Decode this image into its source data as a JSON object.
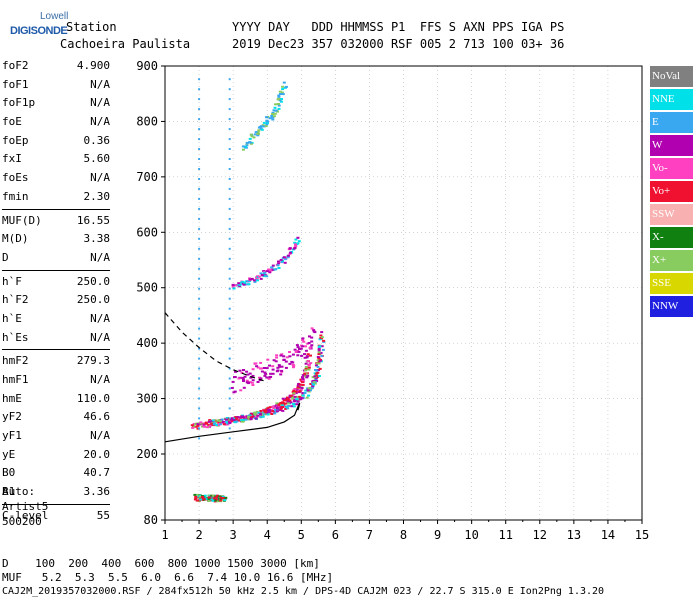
{
  "logo": {
    "line1": "Lowell",
    "line2": "DIGISONDE"
  },
  "header": {
    "station_label": "Station",
    "station_name": "Cachoeira Paulista",
    "columns": "YYYY DAY   DDD HHMMSS P1  FFS S AXN PPS IGA PS",
    "values": "2019 Dec23 357 032000 RSF 005 2 713 100 03+ 36"
  },
  "params": [
    {
      "group": [
        {
          "label": "foF2",
          "value": "4.900"
        },
        {
          "label": "foF1",
          "value": "N/A"
        },
        {
          "label": "foF1p",
          "value": "N/A"
        },
        {
          "label": "foE",
          "value": "N/A"
        },
        {
          "label": "foEp",
          "value": "0.36"
        },
        {
          "label": "fxI",
          "value": "5.60"
        },
        {
          "label": "foEs",
          "value": "N/A"
        },
        {
          "label": "fmin",
          "value": "2.30"
        }
      ]
    },
    {
      "group": [
        {
          "label": "MUF(D)",
          "value": "16.55"
        },
        {
          "label": "M(D)",
          "value": "3.38"
        },
        {
          "label": "D",
          "value": "N/A"
        }
      ]
    },
    {
      "group": [
        {
          "label": "h`F",
          "value": "250.0"
        },
        {
          "label": "h`F2",
          "value": "250.0"
        },
        {
          "label": "h`E",
          "value": "N/A"
        },
        {
          "label": "h`Es",
          "value": "N/A"
        }
      ]
    },
    {
      "group": [
        {
          "label": "hmF2",
          "value": "279.3"
        },
        {
          "label": "hmF1",
          "value": "N/A"
        },
        {
          "label": "hmE",
          "value": "110.0"
        },
        {
          "label": "yF2",
          "value": "46.6"
        },
        {
          "label": "yF1",
          "value": "N/A"
        },
        {
          "label": "yE",
          "value": "20.0"
        },
        {
          "label": "B0",
          "value": "40.7"
        },
        {
          "label": "B1",
          "value": "3.36"
        }
      ]
    },
    {
      "group": [
        {
          "label": "C-level",
          "value": "55"
        }
      ]
    }
  ],
  "auto": {
    "line1": "Auto:",
    "line2": "Artist5",
    "line3": "500200"
  },
  "legend": [
    {
      "label": "NoVal",
      "color": "#808080"
    },
    {
      "label": "NNE",
      "color": "#00e0e8"
    },
    {
      "label": "E",
      "color": "#3aa8f0"
    },
    {
      "label": "W",
      "color": "#b000b0"
    },
    {
      "label": "Vo-",
      "color": "#ff40c0"
    },
    {
      "label": "Vo+",
      "color": "#f01030"
    },
    {
      "label": "SSW",
      "color": "#f8b0b0"
    },
    {
      "label": "X-",
      "color": "#108010"
    },
    {
      "label": "X+",
      "color": "#88cc60"
    },
    {
      "label": "SSE",
      "color": "#d8d800"
    },
    {
      "label": "NNW",
      "color": "#2020e0"
    }
  ],
  "mufs": {
    "line1": "D    100  200  400  600  800 1000 1500 3000 [km]",
    "line2": "MUF   5.2  5.3  5.5  6.0  6.6  7.4 10.0 16.6 [MHz]"
  },
  "footer": "CAJ2M_2019357032000.RSF / 284fx512h 50 kHz 2.5 km / DPS-4D CAJ2M 023 / 22.7 S 315.0 E Ion2Png 1.3.20",
  "chart_data": {
    "type": "scatter",
    "x_ticks": [
      "1",
      "2",
      "3",
      "4",
      "5",
      "6",
      "7",
      "8",
      "9",
      "10",
      "11",
      "12",
      "13",
      "14",
      "15"
    ],
    "y_ticks": [
      "80",
      "200",
      "300",
      "400",
      "500",
      "600",
      "700",
      "800",
      "900"
    ],
    "xlim": [
      1,
      15
    ],
    "ylim": [
      80,
      900
    ],
    "grid": true,
    "traces": [
      {
        "name": "F2 O-trace",
        "x": [
          1.8,
          2.2,
          2.6,
          3.0,
          3.5,
          4.0,
          4.4,
          4.7,
          4.9,
          5.1,
          5.2
        ],
        "y": [
          252,
          255,
          258,
          262,
          270,
          280,
          292,
          305,
          320,
          345,
          380
        ]
      },
      {
        "name": "F2 X-trace",
        "x": [
          2.3,
          2.8,
          3.3,
          3.8,
          4.3,
          4.8,
          5.2,
          5.4,
          5.5,
          5.6
        ],
        "y": [
          258,
          262,
          266,
          272,
          282,
          295,
          315,
          340,
          375,
          420
        ]
      },
      {
        "name": "spread F",
        "x": [
          3.0,
          3.5,
          4.0,
          4.5,
          5.0,
          5.4
        ],
        "y": [
          330,
          345,
          355,
          370,
          390,
          420
        ]
      },
      {
        "name": "Es layer",
        "x": [
          1.9,
          2.1,
          2.3,
          2.5,
          2.7
        ],
        "y": [
          122,
          122,
          121,
          121,
          120
        ]
      },
      {
        "name": "second hop",
        "x": [
          3.0,
          3.5,
          4.0,
          4.5,
          4.9
        ],
        "y": [
          505,
          515,
          530,
          555,
          590
        ]
      },
      {
        "name": "third hop",
        "x": [
          3.3,
          3.8,
          4.2,
          4.5
        ],
        "y": [
          755,
          790,
          820,
          870
        ]
      }
    ],
    "profile_line": {
      "x": [
        1.0,
        2.0,
        3.0,
        4.0,
        4.5,
        4.8,
        4.9
      ],
      "y": [
        222,
        232,
        240,
        248,
        258,
        270,
        285
      ]
    },
    "profile_dashed": {
      "x": [
        1.0,
        1.5,
        2.0,
        2.5,
        3.0,
        3.5,
        4.0
      ],
      "y": [
        455,
        420,
        392,
        368,
        352,
        340,
        330
      ]
    }
  }
}
